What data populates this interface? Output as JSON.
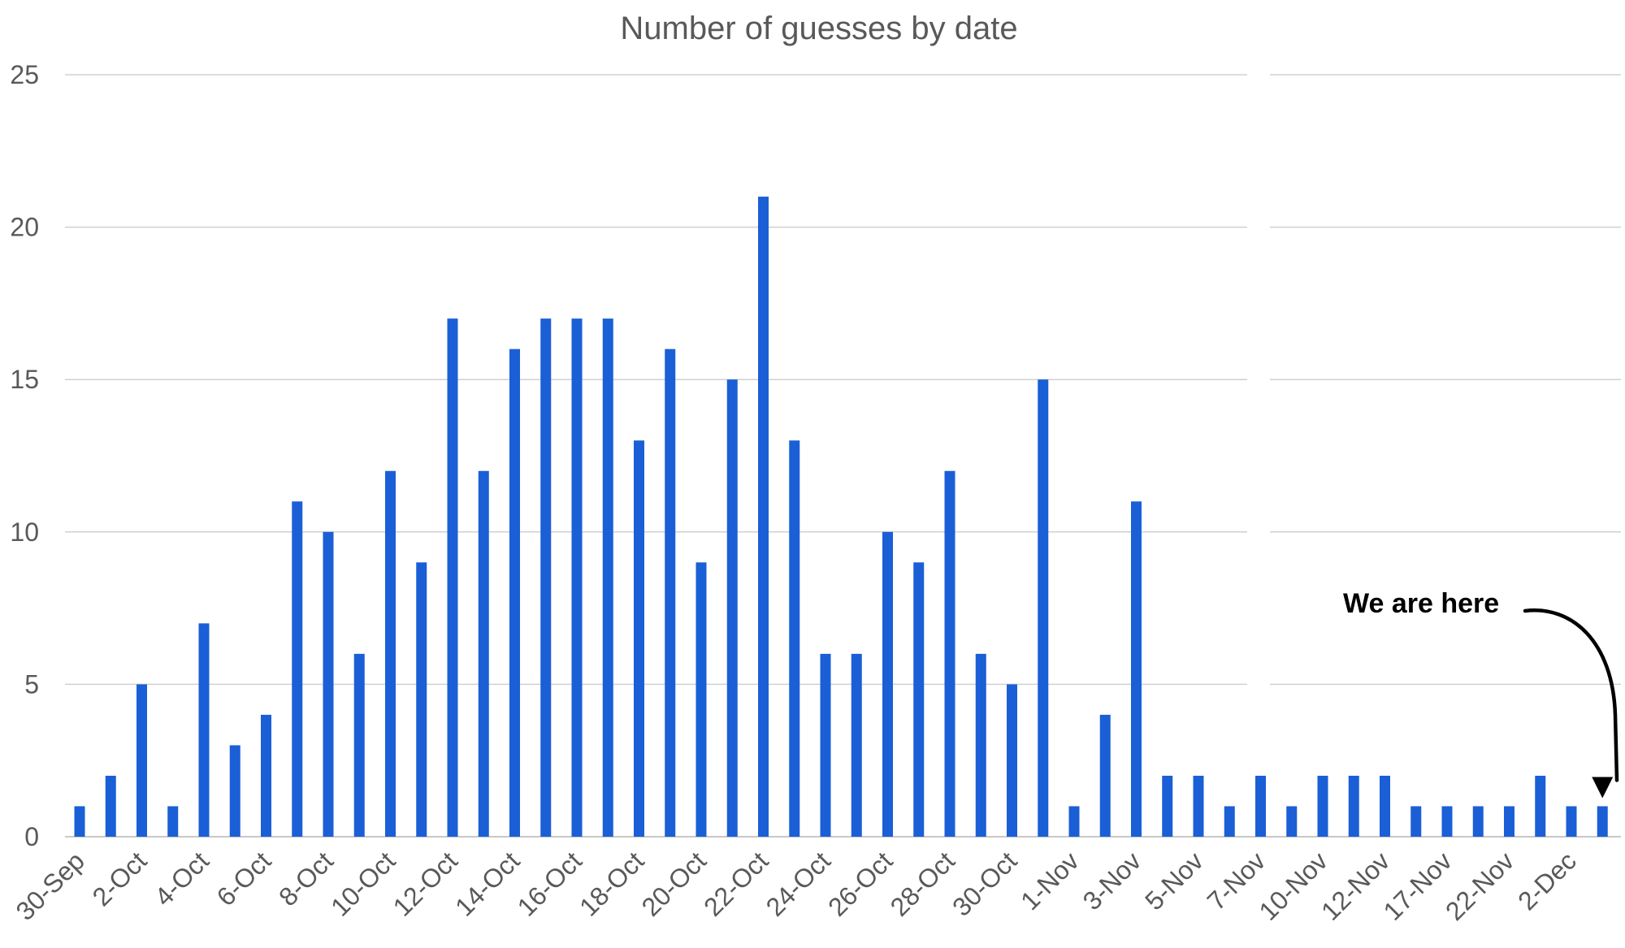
{
  "chart_data": {
    "type": "bar",
    "title": "Number of guesses by date",
    "xlabel": "",
    "ylabel": "",
    "ylim": [
      0,
      25
    ],
    "yticks": [
      "0",
      "5",
      "10",
      "15",
      "20",
      "25"
    ],
    "grid": true,
    "legend": "none",
    "colors": {
      "bar": "#1a5fd6",
      "arrow": "#000000"
    },
    "categories": [
      "30-Sep",
      "1-Oct",
      "2-Oct",
      "3-Oct",
      "4-Oct",
      "5-Oct",
      "6-Oct",
      "7-Oct",
      "8-Oct",
      "9-Oct",
      "10-Oct",
      "11-Oct",
      "12-Oct",
      "13-Oct",
      "14-Oct",
      "15-Oct",
      "16-Oct",
      "17-Oct",
      "18-Oct",
      "19-Oct",
      "20-Oct",
      "21-Oct",
      "22-Oct",
      "23-Oct",
      "24-Oct",
      "25-Oct",
      "26-Oct",
      "27-Oct",
      "28-Oct",
      "29-Oct",
      "30-Oct",
      "31-Oct",
      "1-Nov",
      "2-Nov",
      "3-Nov",
      "4-Nov",
      "5-Nov",
      "6-Nov",
      "7-Nov",
      "9-Nov",
      "10-Nov",
      "11-Nov",
      "12-Nov",
      "16-Nov",
      "17-Nov",
      "18-Nov",
      "22-Nov",
      "30-Nov",
      "2-Dec",
      "4-Dec"
    ],
    "tick_labels": [
      "30-Sep",
      "2-Oct",
      "4-Oct",
      "6-Oct",
      "8-Oct",
      "10-Oct",
      "12-Oct",
      "14-Oct",
      "16-Oct",
      "18-Oct",
      "20-Oct",
      "22-Oct",
      "24-Oct",
      "26-Oct",
      "28-Oct",
      "30-Oct",
      "1-Nov",
      "3-Nov",
      "5-Nov",
      "7-Nov",
      "10-Nov",
      "12-Nov",
      "17-Nov",
      "22-Nov",
      "2-Dec"
    ],
    "values": [
      1,
      2,
      5,
      1,
      7,
      3,
      4,
      11,
      10,
      6,
      12,
      9,
      17,
      12,
      16,
      17,
      17,
      17,
      13,
      16,
      9,
      15,
      21,
      13,
      6,
      6,
      10,
      9,
      12,
      6,
      5,
      15,
      1,
      4,
      11,
      2,
      2,
      1,
      2,
      1,
      2,
      2,
      2,
      1,
      1,
      1,
      1,
      2,
      1,
      1
    ],
    "annotation": {
      "text": "We are here",
      "points_to_category": "4-Dec"
    }
  }
}
